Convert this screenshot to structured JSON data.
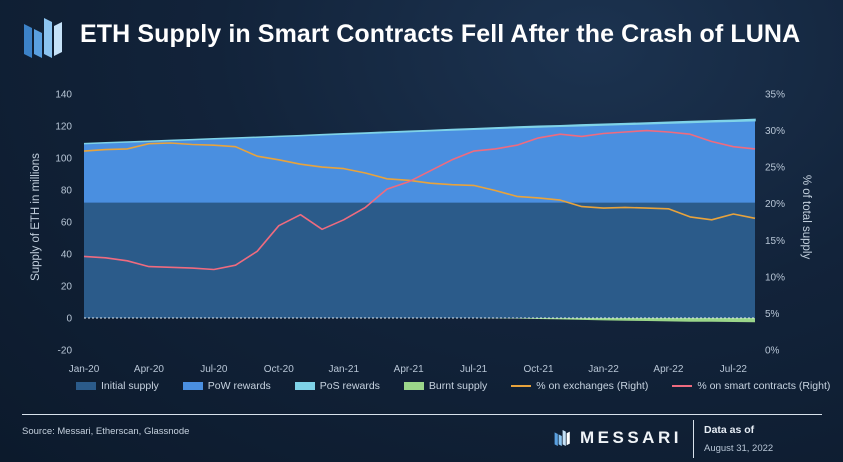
{
  "title": "ETH Supply in Smart Contracts Fell After the Crash of LUNA",
  "footer": {
    "source": "Source: Messari, Etherscan, Glassnode",
    "brand": "MESSARI",
    "as_of_label": "Data as of",
    "as_of_date": "August 31, 2022"
  },
  "colors": {
    "initial_supply": "#2b5b8a",
    "pow_rewards": "#4a8fe0",
    "pos_rewards": "#7fd3e8",
    "burnt_supply": "#9bd68a",
    "exchanges": "#e8a33c",
    "smart_contracts": "#ef6b7f"
  },
  "chart_data": {
    "type": "area",
    "ylabel": "Supply of ETH in millions",
    "y2label": "% of total supply",
    "ylim": [
      -20,
      140
    ],
    "y_ticks": [
      "140",
      "120",
      "100",
      "80",
      "60",
      "40",
      "20",
      "0",
      "-20"
    ],
    "y2lim": [
      0,
      35
    ],
    "y2_ticks": [
      "35%",
      "30%",
      "25%",
      "20%",
      "15%",
      "10%",
      "5%",
      "0%"
    ],
    "x_ticks": [
      "Jan-20",
      "Apr-20",
      "Jul-20",
      "Oct-20",
      "Jan-21",
      "Apr-21",
      "Jul-21",
      "Oct-21",
      "Jan-22",
      "Apr-22",
      "Jul-22"
    ],
    "x": [
      "2020-01",
      "2020-02",
      "2020-03",
      "2020-04",
      "2020-05",
      "2020-06",
      "2020-07",
      "2020-08",
      "2020-09",
      "2020-10",
      "2020-11",
      "2020-12",
      "2021-01",
      "2021-02",
      "2021-03",
      "2021-04",
      "2021-05",
      "2021-06",
      "2021-07",
      "2021-08",
      "2021-09",
      "2021-10",
      "2021-11",
      "2021-12",
      "2022-01",
      "2022-02",
      "2022-03",
      "2022-04",
      "2022-05",
      "2022-06",
      "2022-07",
      "2022-08"
    ],
    "grid": false,
    "legend_position": "bottom",
    "series": [
      {
        "name": "Initial supply",
        "axis": "left",
        "kind": "area",
        "values": [
          72,
          72,
          72,
          72,
          72,
          72,
          72,
          72,
          72,
          72,
          72,
          72,
          72,
          72,
          72,
          72,
          72,
          72,
          72,
          72,
          72,
          72,
          72,
          72,
          72,
          72,
          72,
          72,
          72,
          72,
          72,
          72
        ]
      },
      {
        "name": "PoW rewards",
        "axis": "left",
        "kind": "area",
        "values": [
          37.0,
          37.5,
          38.0,
          38.5,
          39.0,
          39.5,
          40.0,
          40.5,
          41.0,
          41.5,
          42.0,
          42.5,
          43.0,
          43.5,
          44.0,
          44.5,
          45.0,
          45.5,
          46.0,
          46.5,
          47.0,
          47.4,
          47.8,
          48.2,
          48.6,
          49.0,
          49.4,
          49.8,
          50.2,
          50.6,
          51.0,
          51.4
        ]
      },
      {
        "name": "PoS rewards",
        "axis": "left",
        "kind": "area",
        "values": [
          0,
          0,
          0,
          0,
          0,
          0,
          0,
          0,
          0,
          0,
          0,
          0.1,
          0.1,
          0.1,
          0.2,
          0.2,
          0.2,
          0.3,
          0.3,
          0.3,
          0.4,
          0.4,
          0.4,
          0.5,
          0.5,
          0.5,
          0.5,
          0.6,
          0.6,
          0.6,
          0.6,
          0.7
        ]
      },
      {
        "name": "Burnt supply",
        "axis": "left",
        "kind": "area",
        "values": [
          0,
          0,
          0,
          0,
          0,
          0,
          0,
          0,
          0,
          0,
          0,
          0,
          0,
          0,
          0,
          0,
          0,
          0,
          0,
          -0.1,
          -0.3,
          -0.6,
          -0.9,
          -1.2,
          -1.5,
          -1.7,
          -1.9,
          -2.1,
          -2.3,
          -2.4,
          -2.5,
          -2.6
        ]
      },
      {
        "name": "% on exchanges (Right)",
        "axis": "right",
        "kind": "line",
        "values": [
          27.2,
          27.4,
          27.5,
          28.2,
          28.3,
          28.1,
          28.0,
          27.8,
          26.5,
          26.0,
          25.4,
          25.0,
          24.8,
          24.2,
          23.4,
          23.2,
          22.8,
          22.6,
          22.5,
          21.8,
          21.0,
          20.8,
          20.5,
          19.6,
          19.4,
          19.5,
          19.4,
          19.3,
          18.2,
          17.8,
          18.6,
          18.0
        ]
      },
      {
        "name": "% on smart contracts (Right)",
        "axis": "right",
        "kind": "line",
        "values": [
          12.8,
          12.6,
          12.2,
          11.4,
          11.3,
          11.2,
          11.0,
          11.6,
          13.5,
          17.0,
          18.5,
          16.5,
          17.8,
          19.5,
          22.0,
          23.0,
          24.5,
          26.0,
          27.2,
          27.5,
          28.0,
          29.0,
          29.5,
          29.2,
          29.6,
          29.8,
          30.0,
          29.8,
          29.5,
          28.5,
          27.8,
          27.5
        ]
      }
    ]
  }
}
